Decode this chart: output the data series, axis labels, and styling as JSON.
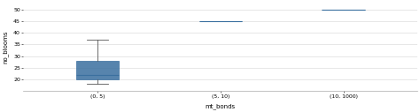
{
  "categories": [
    "(0, 5)",
    "(5, 10)",
    "(10, 1000)"
  ],
  "xlabel": "mt_bonds",
  "ylabel": "no_blooms",
  "ylim": [
    15,
    53
  ],
  "yticks": [
    20,
    25,
    30,
    35,
    40,
    45,
    50
  ],
  "group1": [
    18,
    19,
    20,
    20,
    20,
    21,
    22,
    22,
    23,
    25,
    27,
    29,
    29,
    36,
    37
  ],
  "group2": [
    45
  ],
  "group3": [
    50
  ],
  "box_color": "#3A6F9F",
  "whisker_color": "#555555",
  "median_color": "#3A6F9F",
  "figsize": [
    4.74,
    1.27
  ],
  "dpi": 100,
  "tick_fontsize": 4.5,
  "label_fontsize": 5.0
}
